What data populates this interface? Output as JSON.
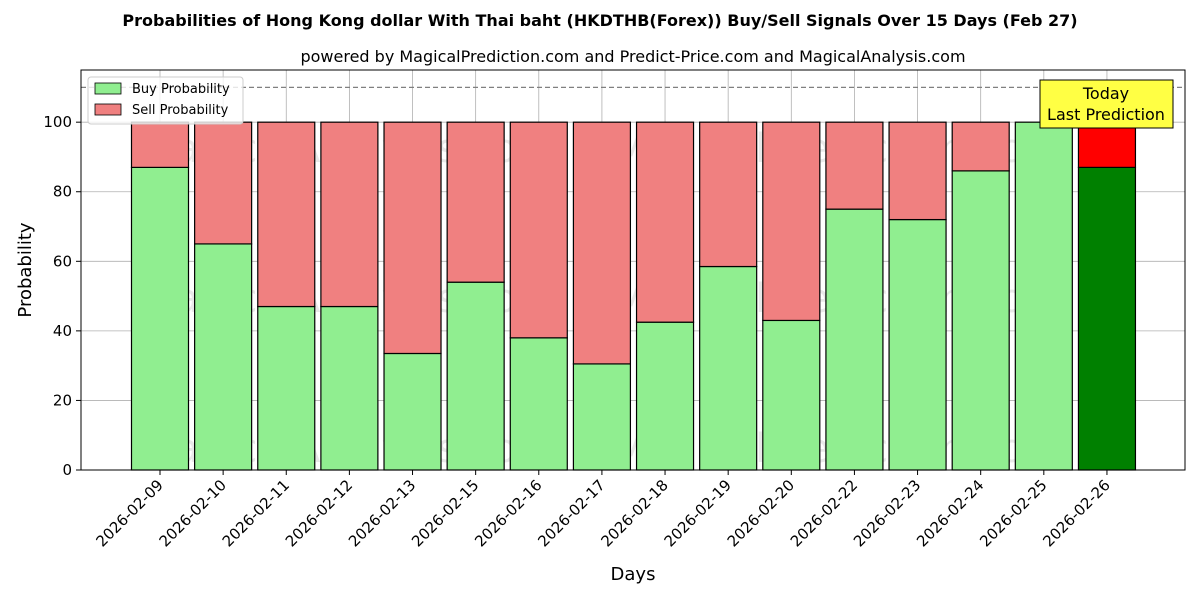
{
  "chart_data": {
    "type": "bar",
    "stacked": true,
    "title": "Probabilities of Hong Kong dollar With Thai baht (HKDTHB(Forex)) Buy/Sell Signals Over 15 Days (Feb 27)",
    "subtitle": "powered by MagicalPrediction.com and Predict-Price.com and MagicalAnalysis.com",
    "xlabel": "Days",
    "ylabel": "Probability",
    "ylim": [
      0,
      115
    ],
    "yticks": [
      0,
      20,
      40,
      60,
      80,
      100
    ],
    "reference_line": 110,
    "grid": true,
    "legend_position": "top-left",
    "categories": [
      "2026-02-09",
      "2026-02-10",
      "2026-02-11",
      "2026-02-12",
      "2026-02-13",
      "2026-02-15",
      "2026-02-16",
      "2026-02-17",
      "2026-02-18",
      "2026-02-19",
      "2026-02-20",
      "2026-02-22",
      "2026-02-23",
      "2026-02-24",
      "2026-02-25",
      "2026-02-26"
    ],
    "series": [
      {
        "name": "Buy Probability",
        "color": "#90ee90",
        "highlight_color": "#008000",
        "values": [
          87,
          65,
          47,
          47,
          33.5,
          54,
          38,
          30.5,
          42.5,
          58.5,
          43,
          75,
          72,
          86,
          100,
          87
        ]
      },
      {
        "name": "Sell Probability",
        "color": "#f08080",
        "highlight_color": "#ff0000",
        "values": [
          13,
          35,
          53,
          53,
          66.5,
          46,
          62,
          69.5,
          57.5,
          41.5,
          57,
          25,
          28,
          14,
          0,
          13
        ]
      }
    ],
    "highlight_index": 15,
    "annotation": {
      "line1": "Today",
      "line2": "Last Prediction",
      "color": "#ffff44"
    },
    "watermarks": [
      "MagicalAnalysis.com",
      "MagicalPrediction.com"
    ]
  }
}
